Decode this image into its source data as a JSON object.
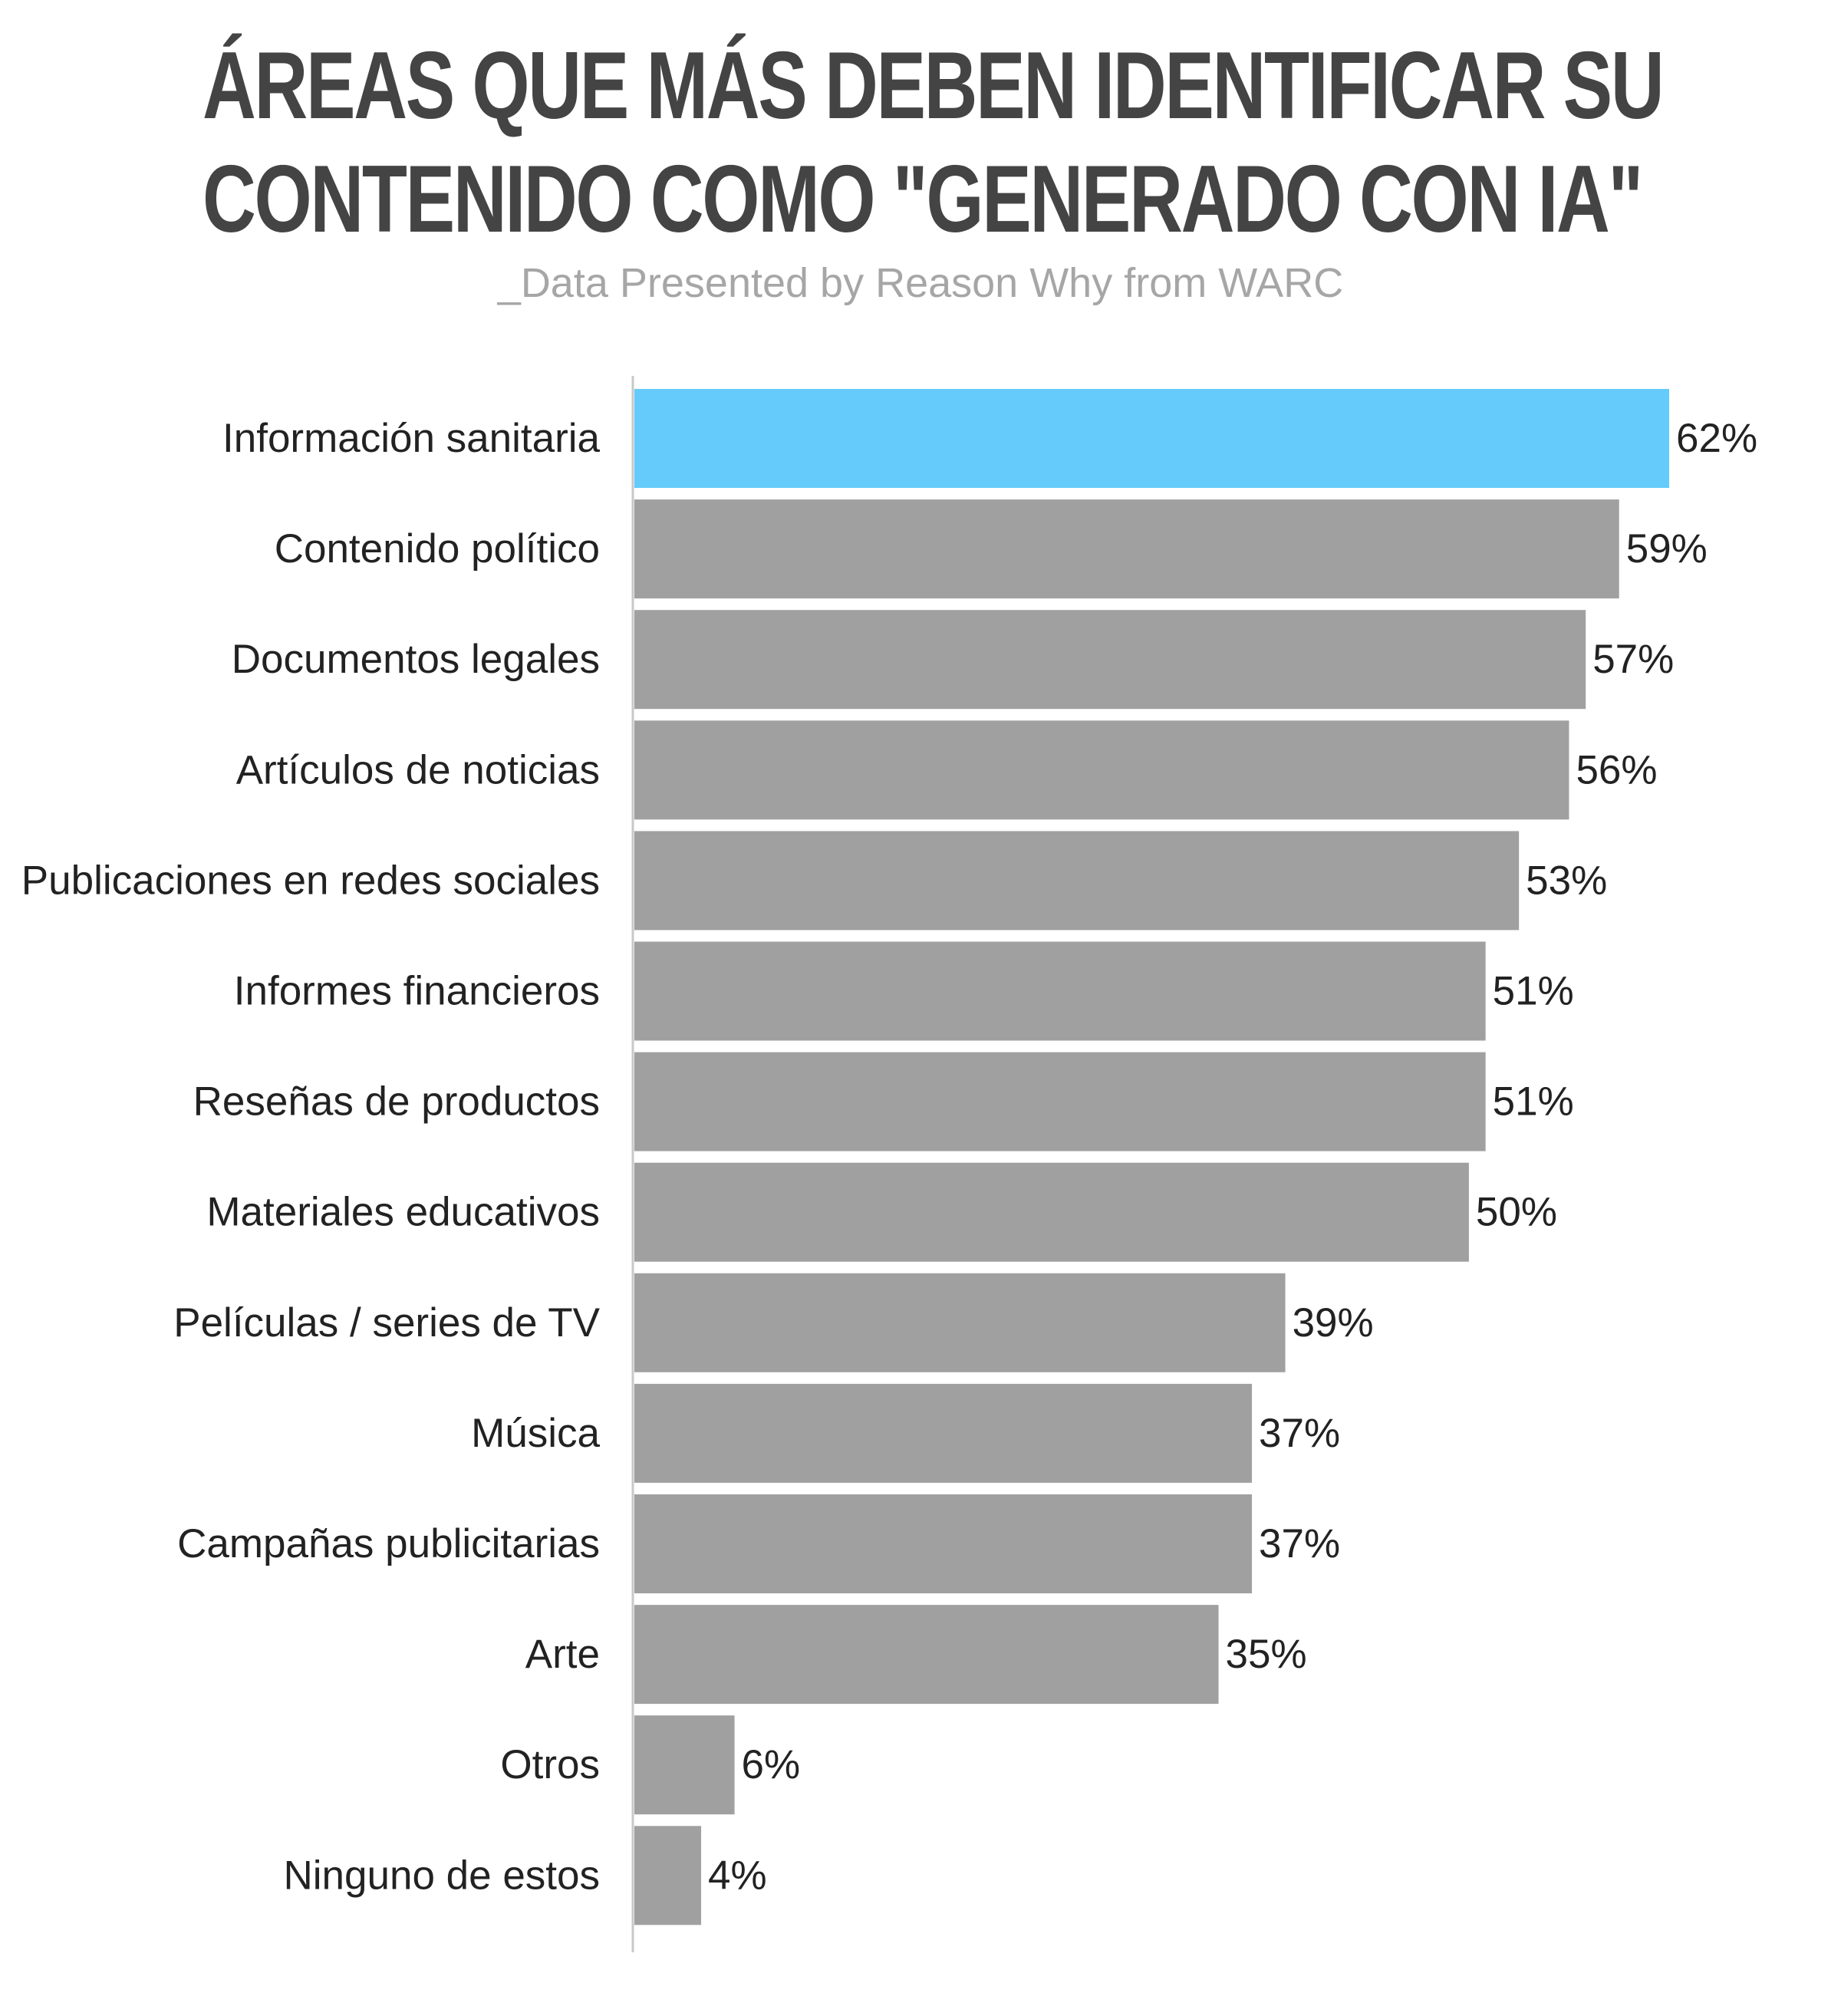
{
  "chart_data": {
    "type": "bar",
    "orientation": "horizontal",
    "title_lines": [
      "ÁREAS QUE MÁS DEBEN IDENTIFICAR SU",
      "CONTENIDO COMO \"GENERADO CON IA\""
    ],
    "subtitle": "_Data Presented by Reason Why from WARC",
    "categories": [
      "Información sanitaria",
      "Contenido político",
      "Documentos legales",
      "Artículos de noticias",
      "Publicaciones en redes sociales",
      "Informes financieros",
      "Reseñas de productos",
      "Materiales educativos",
      "Películas / series de TV",
      "Música",
      "Campañas publicitarias",
      "Arte",
      "Otros",
      "Ninguno de estos"
    ],
    "values": [
      62,
      59,
      57,
      56,
      53,
      51,
      51,
      50,
      39,
      37,
      37,
      35,
      6,
      4
    ],
    "value_labels": [
      "62%",
      "59%",
      "57%",
      "56%",
      "53%",
      "51%",
      "51%",
      "50%",
      "39%",
      "37%",
      "37%",
      "35%",
      "6%",
      "4%"
    ],
    "unit": "%",
    "xlim": [
      0,
      62
    ],
    "highlight_index": 0,
    "colors": {
      "highlight": "#64cbfa",
      "bar": "#a0a0a0",
      "axis": "#c8c8c8",
      "label": "#222222",
      "value_label": "#222222"
    },
    "grid": false,
    "legend": "none"
  }
}
